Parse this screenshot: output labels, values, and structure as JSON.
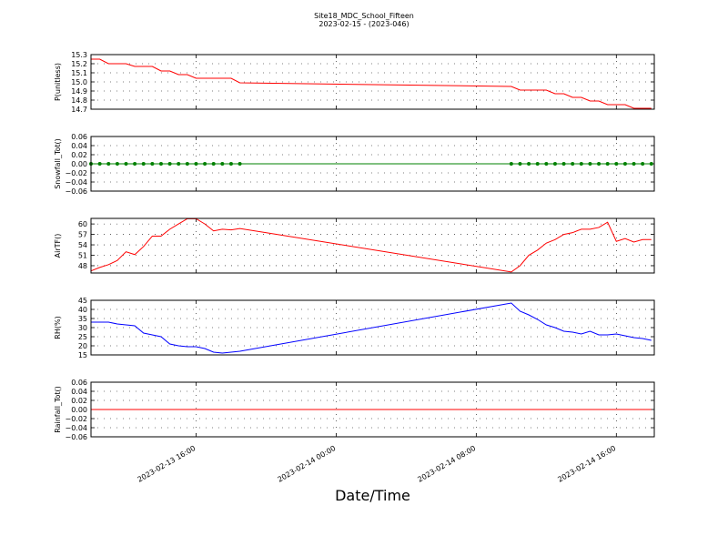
{
  "chart_data": [
    {
      "type": "line",
      "title": "Site18_MDC_School_Fifteen",
      "subtitle": "2023-02-15 - (2023-046)",
      "ylabel": "P(unitless)",
      "color": "#ff0000",
      "grid": true,
      "ylim": [
        14.7,
        15.3
      ],
      "yticks": [
        14.7,
        14.8,
        14.9,
        {
          "value": 15.0,
          "label": "15.0"
        },
        15.1,
        15.2,
        15.3
      ],
      "x": [
        "2023-02-13 10:00",
        "2023-02-13 10:30",
        "2023-02-13 11:00",
        "2023-02-13 11:30",
        "2023-02-13 12:00",
        "2023-02-13 12:30",
        "2023-02-13 13:00",
        "2023-02-13 13:30",
        "2023-02-13 14:00",
        "2023-02-13 14:30",
        "2023-02-13 15:00",
        "2023-02-13 15:30",
        "2023-02-13 16:00",
        "2023-02-13 16:30",
        "2023-02-13 17:00",
        "2023-02-13 17:30",
        "2023-02-13 18:00",
        "2023-02-13 18:30",
        "2023-02-14 10:00",
        "2023-02-14 10:30",
        "2023-02-14 11:00",
        "2023-02-14 11:30",
        "2023-02-14 12:00",
        "2023-02-14 12:30",
        "2023-02-14 13:00",
        "2023-02-14 13:30",
        "2023-02-14 14:00",
        "2023-02-14 14:30",
        "2023-02-14 15:00",
        "2023-02-14 15:30",
        "2023-02-14 16:00",
        "2023-02-14 16:30",
        "2023-02-14 17:00",
        "2023-02-14 17:30",
        "2023-02-14 18:00"
      ],
      "values": [
        15.25,
        15.25,
        15.2,
        15.2,
        15.2,
        15.17,
        15.17,
        15.17,
        15.12,
        15.12,
        15.08,
        15.08,
        15.04,
        15.04,
        15.04,
        15.04,
        15.04,
        14.99,
        14.95,
        14.91,
        14.91,
        14.91,
        14.91,
        14.87,
        14.87,
        14.83,
        14.83,
        14.79,
        14.79,
        14.75,
        14.75,
        14.75,
        14.71,
        14.71,
        14.71
      ]
    },
    {
      "type": "line",
      "ylabel": "Snowfall_Tot()",
      "color": "#008000",
      "marker": "o",
      "grid": true,
      "ylim": [
        -0.06,
        0.06
      ],
      "yticks": [
        {
          "value": -0.06,
          "label": "−0.06"
        },
        {
          "value": -0.04,
          "label": "−0.04"
        },
        {
          "value": -0.02,
          "label": "−0.02"
        },
        {
          "value": 0,
          "label": "0.00"
        },
        0.02,
        0.04,
        0.06
      ],
      "x": [
        "2023-02-13 10:00",
        "2023-02-13 10:30",
        "2023-02-13 11:00",
        "2023-02-13 11:30",
        "2023-02-13 12:00",
        "2023-02-13 12:30",
        "2023-02-13 13:00",
        "2023-02-13 13:30",
        "2023-02-13 14:00",
        "2023-02-13 14:30",
        "2023-02-13 15:00",
        "2023-02-13 15:30",
        "2023-02-13 16:00",
        "2023-02-13 16:30",
        "2023-02-13 17:00",
        "2023-02-13 17:30",
        "2023-02-13 18:00",
        "2023-02-13 18:30",
        "2023-02-14 10:00",
        "2023-02-14 10:30",
        "2023-02-14 11:00",
        "2023-02-14 11:30",
        "2023-02-14 12:00",
        "2023-02-14 12:30",
        "2023-02-14 13:00",
        "2023-02-14 13:30",
        "2023-02-14 14:00",
        "2023-02-14 14:30",
        "2023-02-14 15:00",
        "2023-02-14 15:30",
        "2023-02-14 16:00",
        "2023-02-14 16:30",
        "2023-02-14 17:00",
        "2023-02-14 17:30",
        "2023-02-14 18:00"
      ],
      "values": [
        0,
        0,
        0,
        0,
        0,
        0,
        0,
        0,
        0,
        0,
        0,
        0,
        0,
        0,
        0,
        0,
        0,
        0,
        0,
        0,
        0,
        0,
        0,
        0,
        0,
        0,
        0,
        0,
        0,
        0,
        0,
        0,
        0,
        0,
        0
      ]
    },
    {
      "type": "line",
      "ylabel": "AirTF()",
      "color": "#ff0000",
      "grid": true,
      "ylim": [
        45.9,
        61.6
      ],
      "yticks": [
        48,
        51,
        54,
        57,
        60
      ],
      "x": [
        "2023-02-13 10:00",
        "2023-02-13 10:30",
        "2023-02-13 11:00",
        "2023-02-13 11:30",
        "2023-02-13 12:00",
        "2023-02-13 12:30",
        "2023-02-13 13:00",
        "2023-02-13 13:30",
        "2023-02-13 14:00",
        "2023-02-13 14:30",
        "2023-02-13 15:00",
        "2023-02-13 15:30",
        "2023-02-13 16:00",
        "2023-02-13 16:30",
        "2023-02-13 17:00",
        "2023-02-13 17:30",
        "2023-02-13 18:00",
        "2023-02-13 18:30",
        "2023-02-14 10:00",
        "2023-02-14 10:30",
        "2023-02-14 11:00",
        "2023-02-14 11:30",
        "2023-02-14 12:00",
        "2023-02-14 12:30",
        "2023-02-14 13:00",
        "2023-02-14 13:30",
        "2023-02-14 14:00",
        "2023-02-14 14:30",
        "2023-02-14 15:00",
        "2023-02-14 15:30",
        "2023-02-14 16:00",
        "2023-02-14 16:30",
        "2023-02-14 17:00",
        "2023-02-14 17:30",
        "2023-02-14 18:00"
      ],
      "values": [
        46.5,
        47.5,
        48.3,
        49.5,
        52,
        51.2,
        53.5,
        56.5,
        56.5,
        58.5,
        60,
        61.5,
        61.5,
        60,
        58,
        58.5,
        58.3,
        58.7,
        46.2,
        48,
        51,
        52.5,
        54.5,
        55.5,
        57,
        57.5,
        58.5,
        58.5,
        59,
        60.5,
        55,
        55.8,
        54.8,
        55.5,
        55.5
      ]
    },
    {
      "type": "line",
      "ylabel": "RH(%)",
      "color": "#0000ff",
      "grid": true,
      "ylim": [
        15,
        45
      ],
      "yticks": [
        15,
        20,
        25,
        30,
        35,
        40,
        45
      ],
      "x": [
        "2023-02-13 10:00",
        "2023-02-13 10:30",
        "2023-02-13 11:00",
        "2023-02-13 11:30",
        "2023-02-13 12:00",
        "2023-02-13 12:30",
        "2023-02-13 13:00",
        "2023-02-13 13:30",
        "2023-02-13 14:00",
        "2023-02-13 14:30",
        "2023-02-13 15:00",
        "2023-02-13 15:30",
        "2023-02-13 16:00",
        "2023-02-13 16:30",
        "2023-02-13 17:00",
        "2023-02-13 17:30",
        "2023-02-13 18:00",
        "2023-02-13 18:30",
        "2023-02-14 10:00",
        "2023-02-14 10:30",
        "2023-02-14 11:00",
        "2023-02-14 11:30",
        "2023-02-14 12:00",
        "2023-02-14 12:30",
        "2023-02-14 13:00",
        "2023-02-14 13:30",
        "2023-02-14 14:00",
        "2023-02-14 14:30",
        "2023-02-14 15:00",
        "2023-02-14 15:30",
        "2023-02-14 16:00",
        "2023-02-14 16:30",
        "2023-02-14 17:00",
        "2023-02-14 17:30",
        "2023-02-14 18:00"
      ],
      "values": [
        33,
        33,
        33,
        32,
        31.5,
        31,
        27,
        26,
        25,
        21,
        20,
        19.5,
        19.5,
        18.5,
        16.5,
        16,
        16.5,
        17,
        43.5,
        39,
        37,
        34.5,
        31.5,
        30,
        28,
        27.5,
        26.5,
        28,
        26,
        26,
        26.5,
        25.5,
        24.5,
        24,
        23
      ]
    },
    {
      "type": "line",
      "ylabel": "Rainfall_Tot()",
      "xlabel": "Date/Time",
      "color": "#ff0000",
      "grid": true,
      "ylim": [
        -0.06,
        0.06
      ],
      "yticks": [
        {
          "value": -0.06,
          "label": "−0.06"
        },
        {
          "value": -0.04,
          "label": "−0.04"
        },
        {
          "value": -0.02,
          "label": "−0.02"
        },
        {
          "value": 0,
          "label": "0.00"
        },
        0.02,
        0.04,
        0.06
      ],
      "xlim": [
        "2023-02-13 10:00",
        "2023-02-14 18:10"
      ],
      "xticks": [
        "2023-02-13 16:00",
        "2023-02-14 00:00",
        "2023-02-14 08:00",
        "2023-02-14 16:00"
      ],
      "x": [
        "2023-02-13 10:00",
        "2023-02-13 10:30",
        "2023-02-13 11:00",
        "2023-02-13 11:30",
        "2023-02-13 12:00",
        "2023-02-13 12:30",
        "2023-02-13 13:00",
        "2023-02-13 13:30",
        "2023-02-13 14:00",
        "2023-02-13 14:30",
        "2023-02-13 15:00",
        "2023-02-13 15:30",
        "2023-02-13 16:00",
        "2023-02-13 16:30",
        "2023-02-13 17:00",
        "2023-02-13 17:30",
        "2023-02-13 18:00",
        "2023-02-13 18:30",
        "2023-02-14 10:00",
        "2023-02-14 10:30",
        "2023-02-14 11:00",
        "2023-02-14 11:30",
        "2023-02-14 12:00",
        "2023-02-14 12:30",
        "2023-02-14 13:00",
        "2023-02-14 13:30",
        "2023-02-14 14:00",
        "2023-02-14 14:30",
        "2023-02-14 15:00",
        "2023-02-14 15:30",
        "2023-02-14 16:00",
        "2023-02-14 16:30",
        "2023-02-14 17:00",
        "2023-02-14 17:30",
        "2023-02-14 18:00"
      ],
      "values": [
        0,
        0,
        0,
        0,
        0,
        0,
        0,
        0,
        0,
        0,
        0,
        0,
        0,
        0,
        0,
        0,
        0,
        0,
        0,
        0,
        0,
        0,
        0,
        0,
        0,
        0,
        0,
        0,
        0,
        0,
        0,
        0,
        0,
        0,
        0
      ]
    }
  ]
}
